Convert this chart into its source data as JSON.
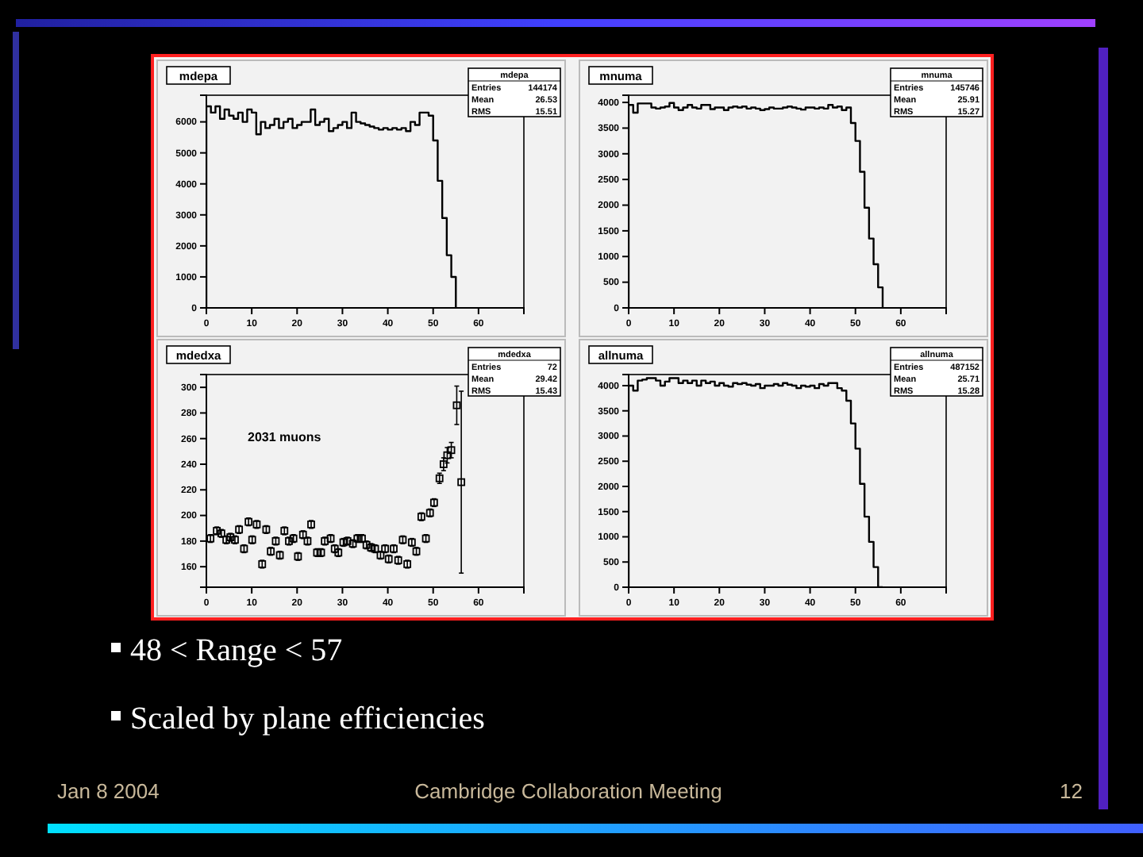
{
  "chart_data": [
    {
      "type": "histogram",
      "title": "mdepa",
      "xlim": [
        0,
        70
      ],
      "xticks": [
        0,
        10,
        20,
        30,
        40,
        50,
        60
      ],
      "ylim": [
        0,
        6860
      ],
      "yticks": [
        0,
        1000,
        2000,
        3000,
        4000,
        5000,
        6000
      ],
      "color": "#000000",
      "bins": [
        0,
        1,
        2,
        3,
        4,
        5,
        6,
        7,
        8,
        9,
        10,
        11,
        12,
        13,
        14,
        15,
        16,
        17,
        18,
        19,
        20,
        21,
        22,
        23,
        24,
        25,
        26,
        27,
        28,
        29,
        30,
        31,
        32,
        33,
        34,
        35,
        36,
        37,
        38,
        39,
        40,
        41,
        42,
        43,
        44,
        45,
        46,
        47,
        48,
        49,
        50,
        51,
        52,
        53,
        54,
        55
      ],
      "values": [
        6500,
        6300,
        6500,
        6100,
        6400,
        6200,
        6100,
        6300,
        6000,
        6400,
        6300,
        5600,
        6000,
        5800,
        5900,
        6100,
        5800,
        6000,
        6100,
        5800,
        5900,
        6000,
        6000,
        6400,
        5900,
        6000,
        6100,
        5700,
        5800,
        5900,
        6000,
        5800,
        6300,
        6000,
        5950,
        5900,
        5850,
        5800,
        5750,
        5800,
        5750,
        5800,
        5750,
        5800,
        5700,
        6000,
        5900,
        6300,
        6300,
        6200,
        5400,
        4100,
        2900,
        1700,
        1000
      ],
      "annotations": [
        "Entries 144174",
        "Mean 26.53",
        "RMS 15.51"
      ]
    },
    {
      "type": "histogram",
      "title": "mnuma",
      "xlim": [
        0,
        70
      ],
      "xticks": [
        0,
        10,
        20,
        30,
        40,
        50,
        60
      ],
      "ylim": [
        0,
        4140
      ],
      "yticks": [
        0,
        500,
        1000,
        1500,
        2000,
        2500,
        3000,
        3500,
        4000
      ],
      "color": "#000000",
      "bins": [
        0,
        1,
        2,
        3,
        4,
        5,
        6,
        7,
        8,
        9,
        10,
        11,
        12,
        13,
        14,
        15,
        16,
        17,
        18,
        19,
        20,
        21,
        22,
        23,
        24,
        25,
        26,
        27,
        28,
        29,
        30,
        31,
        32,
        33,
        34,
        35,
        36,
        37,
        38,
        39,
        40,
        41,
        42,
        43,
        44,
        45,
        46,
        47,
        48,
        49,
        50,
        51,
        52,
        53,
        54,
        55,
        56
      ],
      "values": [
        3950,
        3800,
        3980,
        3980,
        3980,
        3900,
        3880,
        3900,
        3920,
        3990,
        3900,
        3850,
        3900,
        3950,
        3900,
        3880,
        3950,
        3950,
        3870,
        3900,
        3900,
        3850,
        3900,
        3920,
        3900,
        3920,
        3880,
        3900,
        3880,
        3850,
        3870,
        3900,
        3880,
        3880,
        3900,
        3920,
        3900,
        3880,
        3860,
        3900,
        3900,
        3880,
        3900,
        3880,
        3950,
        3900,
        3920,
        3850,
        3900,
        3600,
        3250,
        2650,
        1950,
        1350,
        850,
        400
      ],
      "annotations": [
        "Entries 145746",
        "Mean 25.91",
        "RMS 15.27"
      ]
    },
    {
      "type": "scatter",
      "title": "mdedxa",
      "xlim": [
        0,
        70
      ],
      "xticks": [
        0,
        10,
        20,
        30,
        40,
        50,
        60
      ],
      "ylim": [
        144,
        310
      ],
      "yticks": [
        160,
        180,
        200,
        220,
        240,
        260,
        280,
        300
      ],
      "color": "#000000",
      "marker": "square",
      "x": [
        0.9,
        2.3,
        3.3,
        4.4,
        5.3,
        6.3,
        7.2,
        8.3,
        9.3,
        10.1,
        11.1,
        12.3,
        13.2,
        14.2,
        15.3,
        16.2,
        17.2,
        18.2,
        19.2,
        20.2,
        21.3,
        22.3,
        23.1,
        24.4,
        25.3,
        26.1,
        27.4,
        28.3,
        29.1,
        30.2,
        31.1,
        32.3,
        33.3,
        34.3,
        35.3,
        36.3,
        37.2,
        38.4,
        39.4,
        40.2,
        41.3,
        42.3,
        43.3,
        44.3,
        45.3,
        46.3,
        47.4,
        48.4,
        49.3,
        50.2,
        51.4,
        52.3,
        53.1,
        54,
        55.2,
        56.2
      ],
      "values": [
        182,
        188,
        186,
        181,
        183,
        181,
        189,
        174,
        195,
        181,
        193,
        162,
        189,
        172,
        180,
        169,
        188,
        180,
        182,
        168,
        185,
        180,
        193,
        171,
        171,
        180,
        182,
        174,
        171,
        179,
        180,
        178,
        182,
        182,
        177,
        175,
        174,
        169,
        174,
        166,
        174,
        165,
        181,
        162,
        179,
        172,
        199,
        182,
        202,
        210,
        229,
        240,
        247,
        251,
        286,
        226
      ],
      "errors": [
        3,
        3,
        3,
        3,
        3,
        3,
        3,
        3,
        3,
        3,
        3,
        3,
        3,
        3,
        3,
        3,
        3,
        3,
        3,
        3,
        3,
        3,
        3,
        3,
        3,
        3,
        3,
        3,
        3,
        3,
        3,
        3,
        3,
        3,
        3,
        3,
        3,
        3,
        3,
        3,
        3,
        3,
        3,
        3,
        3,
        3,
        3,
        3,
        3,
        3,
        4,
        5,
        6,
        6,
        15,
        71
      ],
      "annotations": [
        "Entries 72",
        "Mean 29.42",
        "RMS 15.43",
        "2031 muons"
      ]
    },
    {
      "type": "histogram",
      "title": "allnuma",
      "xlim": [
        0,
        70
      ],
      "xticks": [
        0,
        10,
        20,
        30,
        40,
        50,
        60
      ],
      "ylim": [
        0,
        4220
      ],
      "yticks": [
        0,
        500,
        1000,
        1500,
        2000,
        2500,
        3000,
        3500,
        4000
      ],
      "color": "#000000",
      "bins": [
        0,
        1,
        2,
        3,
        4,
        5,
        6,
        7,
        8,
        9,
        10,
        11,
        12,
        13,
        14,
        15,
        16,
        17,
        18,
        19,
        20,
        21,
        22,
        23,
        24,
        25,
        26,
        27,
        28,
        29,
        30,
        31,
        32,
        33,
        34,
        35,
        36,
        37,
        38,
        39,
        40,
        41,
        42,
        43,
        44,
        45,
        46,
        47,
        48,
        49,
        50,
        51,
        52,
        53,
        54,
        55,
        56
      ],
      "values": [
        4000,
        3900,
        4100,
        4120,
        4150,
        4150,
        4100,
        4000,
        4080,
        4150,
        4150,
        4050,
        4100,
        4050,
        4100,
        4000,
        4100,
        4050,
        4080,
        4000,
        4050,
        4000,
        3980,
        4050,
        4030,
        4050,
        4020,
        4000,
        4030,
        3950,
        4000,
        4000,
        4030,
        4000,
        4050,
        4020,
        4000,
        3950,
        4000,
        3980,
        4000,
        3950,
        4030,
        4000,
        4050,
        4050,
        3950,
        3900,
        3700,
        3250,
        2750,
        2050,
        1400,
        900,
        400,
        0
      ],
      "annotations": [
        "Entries 487152",
        "Mean 25.71",
        "RMS 15.28"
      ]
    },
    {
      "type": "other",
      "annotations": [
        "48 < Range < 57",
        "Scaled by plane efficiencies",
        "Jan 8 2004",
        "Cambridge Collaboration Meeting",
        "12"
      ]
    }
  ]
}
